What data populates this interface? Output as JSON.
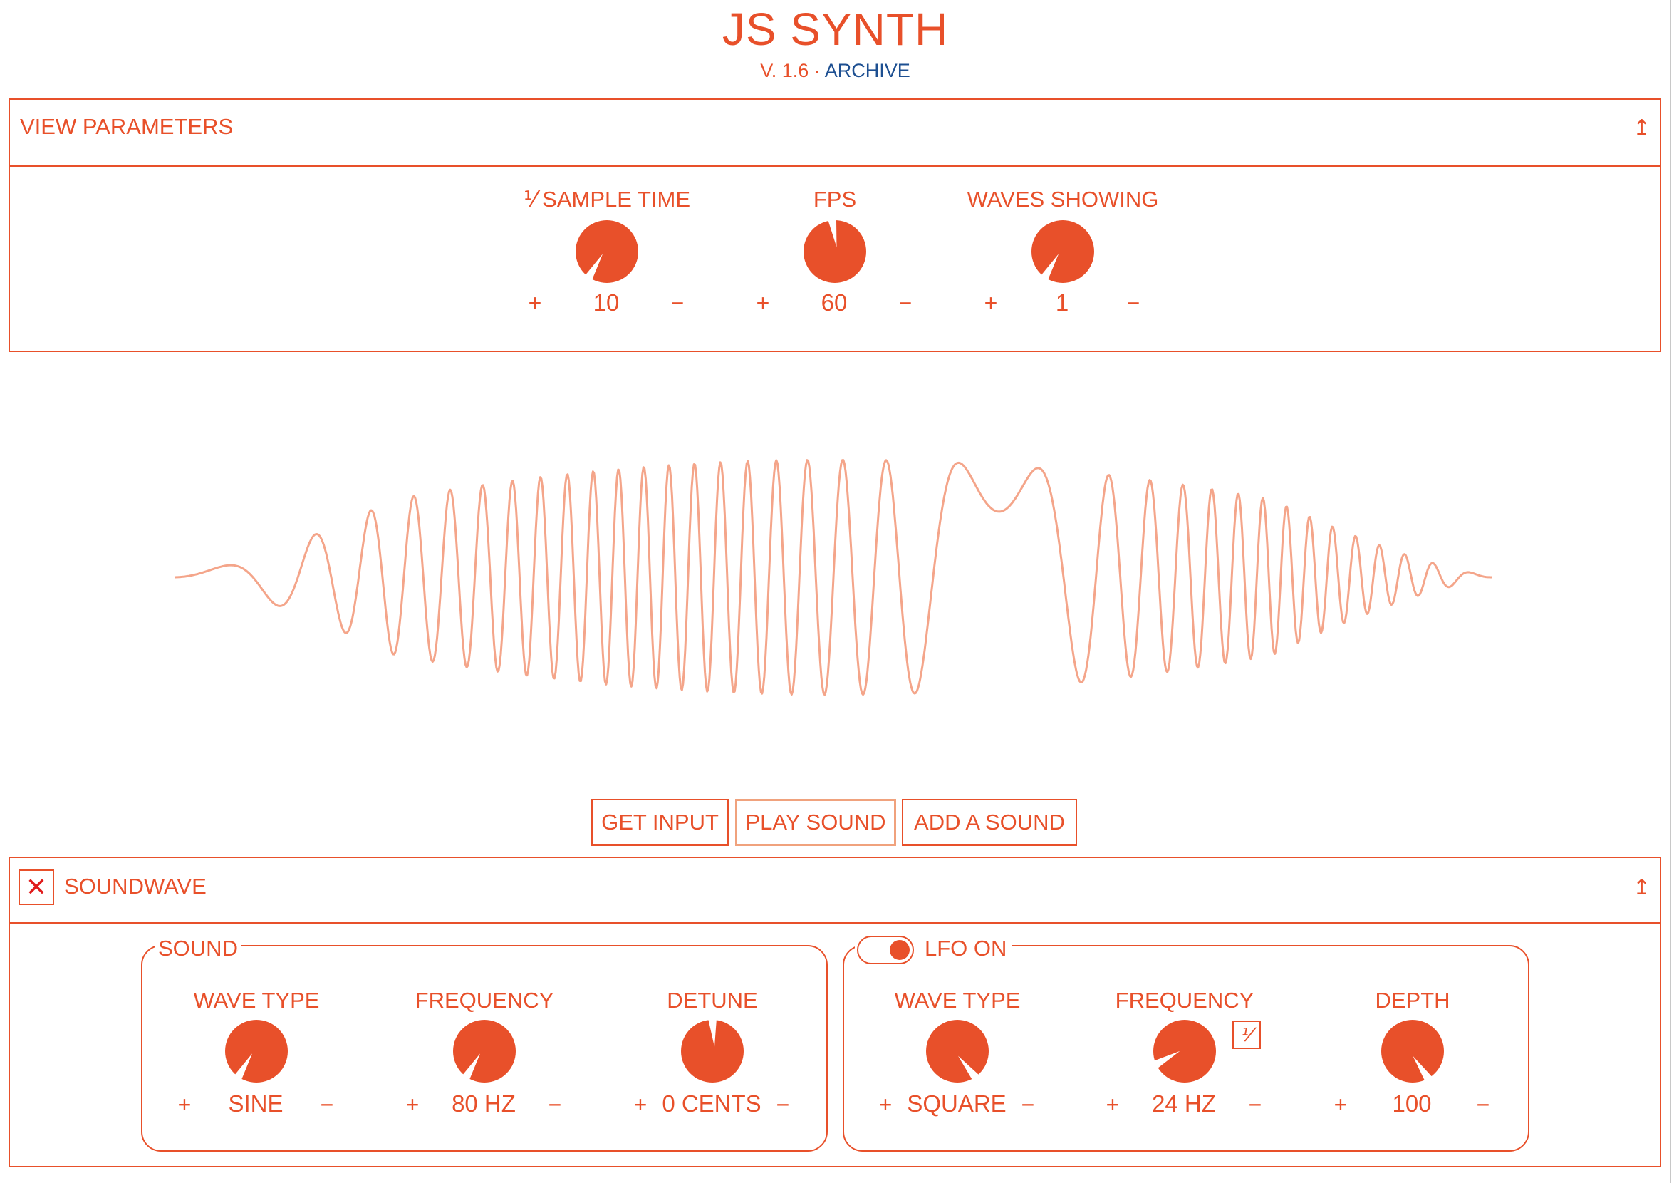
{
  "app": {
    "title": "JS SYNTH",
    "version": "V. 1.6",
    "separator": " · ",
    "archive_link": "ARCHIVE"
  },
  "colors": {
    "accent": "#e8502a",
    "wave": "#f4a58a",
    "link": "#1d4f91",
    "close": "#e01b1b"
  },
  "view_parameters": {
    "header": "VIEW PARAMETERS",
    "collapse_icon": "↥",
    "knobs": [
      {
        "label": "⅟ SAMPLE TIME",
        "value": "10",
        "plus": "+",
        "minus": "−"
      },
      {
        "label": "FPS",
        "value": "60",
        "plus": "+",
        "minus": "−"
      },
      {
        "label": "WAVES SHOWING",
        "value": "1",
        "plus": "+",
        "minus": "−"
      }
    ]
  },
  "buttons": {
    "get_input": "GET INPUT",
    "play_sound": "PLAY SOUND",
    "add_sound": "ADD A SOUND"
  },
  "soundwave": {
    "close_icon": "✕",
    "header": "SOUNDWAVE",
    "collapse_icon": "↥",
    "sound": {
      "legend": "SOUND",
      "knobs": [
        {
          "label": "WAVE TYPE",
          "value": "SINE",
          "plus": "+",
          "minus": "−"
        },
        {
          "label": "FREQUENCY",
          "value": "80 HZ",
          "plus": "+",
          "minus": "−"
        },
        {
          "label": "DETUNE",
          "value": "0 CENTS",
          "plus": "+",
          "minus": "−"
        }
      ]
    },
    "lfo": {
      "legend": "LFO ON",
      "toggle_on": true,
      "invert_label": "⅟",
      "knobs": [
        {
          "label": "WAVE TYPE",
          "value": "SQUARE",
          "plus": "+",
          "minus": "−"
        },
        {
          "label": "FREQUENCY",
          "value": "24 HZ",
          "plus": "+",
          "minus": "−"
        },
        {
          "label": "DEPTH",
          "value": "100",
          "plus": "+",
          "minus": "−"
        }
      ]
    }
  }
}
